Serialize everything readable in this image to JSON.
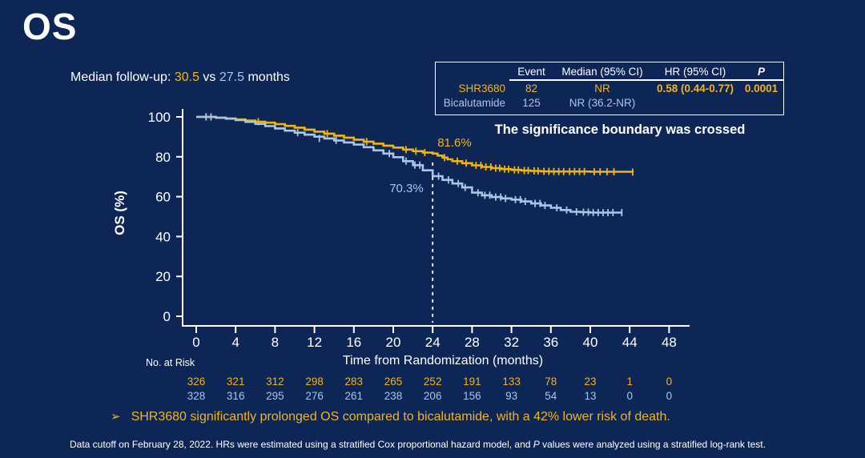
{
  "colors": {
    "background": "#0e2656",
    "yellow": "#f0b41e",
    "curve_yellow": "#f2b500",
    "light_blue": "#a9c5e8",
    "white": "#ffffff"
  },
  "title": "OS",
  "subtitle": {
    "prefix": "Median follow-up: ",
    "value1": "30.5",
    "vs": " vs ",
    "value2": "27.5",
    "suffix": " months"
  },
  "stats_table": {
    "headers": {
      "event": "Event",
      "median": "Median (95% CI)",
      "hr": "HR (95% CI)",
      "p": "P"
    },
    "rows": [
      {
        "label": "SHR3680",
        "event": "82",
        "median": "NR",
        "hr": "0.58 (0.44-0.77)",
        "p": "0.0001"
      },
      {
        "label": "Bicalutamide",
        "event": "125",
        "median": "NR (36.2-NR)",
        "hr": "",
        "p": ""
      }
    ]
  },
  "callout": "The significance boundary was crossed",
  "chart_data": {
    "type": "line",
    "subtype": "kaplan-meier-step",
    "xlabel": "Time from Randomization (months)",
    "ylabel": "OS (%)",
    "xlim": [
      0,
      48
    ],
    "xtick_step": 4,
    "ylim": [
      0,
      100
    ],
    "ytick_step": 20,
    "grid": false,
    "reference_line": {
      "x": 24,
      "style": "dashed",
      "color": "#ffffff"
    },
    "annotations": [
      {
        "text": "81.6%",
        "x": 24,
        "y": 81.6,
        "color": "#f0b41e"
      },
      {
        "text": "70.3%",
        "x": 24,
        "y": 70.3,
        "color": "#a9c5e8"
      }
    ],
    "series": [
      {
        "name": "SHR3680",
        "color": "#f2b500",
        "steps": [
          [
            0,
            100
          ],
          [
            2,
            99.6
          ],
          [
            3,
            99.2
          ],
          [
            4,
            98.7
          ],
          [
            5,
            98.2
          ],
          [
            6,
            97.6
          ],
          [
            7,
            97.1
          ],
          [
            8,
            96.4
          ],
          [
            9,
            95.5
          ],
          [
            10,
            94.6
          ],
          [
            11,
            93.6
          ],
          [
            12,
            92.6
          ],
          [
            13,
            91.6
          ],
          [
            14,
            90.6
          ],
          [
            15,
            89.6
          ],
          [
            16,
            88.6
          ],
          [
            17,
            87.6
          ],
          [
            18,
            86.6
          ],
          [
            19,
            85.6
          ],
          [
            20,
            84.6
          ],
          [
            21,
            83.6
          ],
          [
            22,
            82.8
          ],
          [
            23,
            82.1
          ],
          [
            24,
            81.6
          ],
          [
            24.5,
            80.6
          ],
          [
            25,
            79.6
          ],
          [
            25.5,
            78.7
          ],
          [
            26,
            77.8
          ],
          [
            27,
            76.8
          ],
          [
            28,
            75.7
          ],
          [
            29,
            74.9
          ],
          [
            30,
            74.3
          ],
          [
            31,
            73.8
          ],
          [
            32,
            73.4
          ],
          [
            33,
            73.1
          ],
          [
            34,
            72.9
          ],
          [
            35,
            72.7
          ],
          [
            36,
            72.6
          ],
          [
            40,
            72.5
          ],
          [
            44.3,
            72.3
          ]
        ],
        "censors": [
          [
            1,
            100
          ],
          [
            6.3,
            97.6
          ],
          [
            13.3,
            91.6
          ],
          [
            17.3,
            87.6
          ],
          [
            21.3,
            83.6
          ],
          [
            22.3,
            82.8
          ],
          [
            23.2,
            82.1
          ],
          [
            25.2,
            79.6
          ],
          [
            26.5,
            77.8
          ],
          [
            27.4,
            76.8
          ],
          [
            28.4,
            75.7
          ],
          [
            28.9,
            75.7
          ],
          [
            29.4,
            74.9
          ],
          [
            29.9,
            74.9
          ],
          [
            30.4,
            74.3
          ],
          [
            30.8,
            74.3
          ],
          [
            31.3,
            73.8
          ],
          [
            31.7,
            73.8
          ],
          [
            32.3,
            73.4
          ],
          [
            32.7,
            73.4
          ],
          [
            33.3,
            73.1
          ],
          [
            33.7,
            73.1
          ],
          [
            34.3,
            72.9
          ],
          [
            34.7,
            72.9
          ],
          [
            35.3,
            72.7
          ],
          [
            35.8,
            72.7
          ],
          [
            36.3,
            72.6
          ],
          [
            36.8,
            72.6
          ],
          [
            37.3,
            72.6
          ],
          [
            37.9,
            72.6
          ],
          [
            38.4,
            72.6
          ],
          [
            38.9,
            72.6
          ],
          [
            39.4,
            72.6
          ],
          [
            40.4,
            72.5
          ],
          [
            41,
            72.5
          ],
          [
            41.7,
            72.5
          ],
          [
            42.4,
            72.5
          ],
          [
            44.3,
            72.3
          ]
        ]
      },
      {
        "name": "Bicalutamide",
        "color": "#a9c5e8",
        "steps": [
          [
            0,
            100
          ],
          [
            2,
            99.6
          ],
          [
            3,
            99.1
          ],
          [
            4,
            98.4
          ],
          [
            5,
            97.5
          ],
          [
            6,
            96.5
          ],
          [
            7,
            95.4
          ],
          [
            8,
            94.2
          ],
          [
            9,
            93.1
          ],
          [
            10,
            92.1
          ],
          [
            11,
            91.1
          ],
          [
            12,
            90.1
          ],
          [
            13,
            89.2
          ],
          [
            14,
            88.2
          ],
          [
            15,
            87.2
          ],
          [
            16,
            86.1
          ],
          [
            17,
            84.8
          ],
          [
            18,
            83.2
          ],
          [
            19,
            81.6
          ],
          [
            20,
            79.8
          ],
          [
            21,
            77.8
          ],
          [
            22,
            75.8
          ],
          [
            23,
            73.2
          ],
          [
            24,
            70.3
          ],
          [
            25,
            68.4
          ],
          [
            26,
            66.6
          ],
          [
            27,
            64.6
          ],
          [
            28,
            62
          ],
          [
            29,
            60.7
          ],
          [
            30,
            59.8
          ],
          [
            31,
            59.1
          ],
          [
            32,
            58.5
          ],
          [
            33,
            57.6
          ],
          [
            34,
            56.6
          ],
          [
            35,
            55.6
          ],
          [
            36,
            54.4
          ],
          [
            37,
            53.3
          ],
          [
            38,
            52.4
          ],
          [
            39,
            52.2
          ],
          [
            40,
            52
          ],
          [
            43.2,
            52
          ]
        ],
        "censors": [
          [
            1,
            100
          ],
          [
            1.5,
            100
          ],
          [
            10.3,
            92.1
          ],
          [
            12.5,
            89.2
          ],
          [
            14.2,
            88.2
          ],
          [
            19.6,
            81.6
          ],
          [
            21.3,
            77.8
          ],
          [
            22.2,
            75.8
          ],
          [
            22.7,
            75.8
          ],
          [
            24.6,
            70.3
          ],
          [
            25.6,
            68.4
          ],
          [
            26.6,
            66.6
          ],
          [
            27.3,
            64.6
          ],
          [
            28.6,
            62
          ],
          [
            29.3,
            60.7
          ],
          [
            29.8,
            60.7
          ],
          [
            30.4,
            59.8
          ],
          [
            30.9,
            59.8
          ],
          [
            31.4,
            59.1
          ],
          [
            32.4,
            58.5
          ],
          [
            32.9,
            58.5
          ],
          [
            33.4,
            57.6
          ],
          [
            34.4,
            56.6
          ],
          [
            34.9,
            56.6
          ],
          [
            35.4,
            55.6
          ],
          [
            36.6,
            54.4
          ],
          [
            37.6,
            53.3
          ],
          [
            38.6,
            52.4
          ],
          [
            39.3,
            52.2
          ],
          [
            39.8,
            52.2
          ],
          [
            40.3,
            52
          ],
          [
            40.8,
            52
          ],
          [
            41.3,
            52
          ],
          [
            41.8,
            52
          ],
          [
            42.3,
            52
          ],
          [
            43.2,
            52
          ]
        ]
      }
    ]
  },
  "at_risk": {
    "label": "No. at Risk",
    "times": [
      0,
      4,
      8,
      12,
      16,
      20,
      24,
      28,
      32,
      36,
      40,
      44,
      48
    ],
    "series": [
      {
        "name": "SHR3680",
        "color": "#f0b41e",
        "values": [
          326,
          321,
          312,
          298,
          283,
          265,
          252,
          191,
          133,
          78,
          23,
          1,
          0
        ]
      },
      {
        "name": "Bicalutamide",
        "color": "#a9c5e8",
        "values": [
          328,
          316,
          295,
          276,
          261,
          238,
          206,
          156,
          93,
          54,
          13,
          0,
          0
        ]
      }
    ]
  },
  "bullet": {
    "arrow": "➢",
    "text": "SHR3680 significantly prolonged OS compared to bicalutamide, with a 42% lower risk of death."
  },
  "footer": {
    "part1": "Data cutoff on February 28, 2022. HRs were estimated using a stratified Cox proportional hazard model, and ",
    "italic": "P",
    "part2": " values were analyzed using a stratified log-rank test."
  }
}
